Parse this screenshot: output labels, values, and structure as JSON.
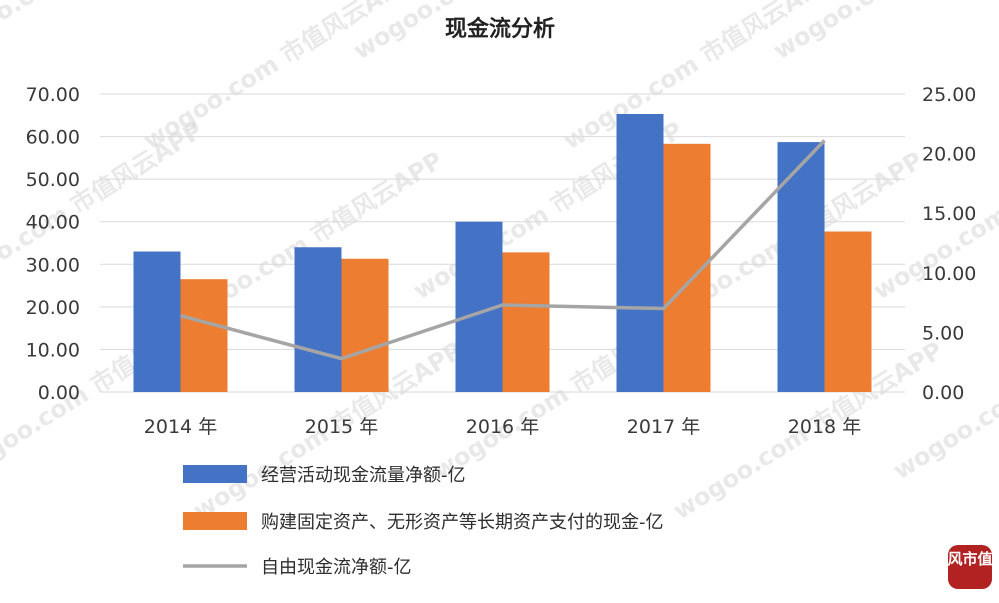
{
  "watermark": {
    "text": "wogoo.com 市值风云APP",
    "logo_text": "风市值"
  },
  "chart_data": {
    "type": "bar",
    "title": "现金流分析",
    "categories": [
      "2014 年",
      "2015 年",
      "2016 年",
      "2017 年",
      "2018 年"
    ],
    "series": [
      {
        "name": "经营活动现金流量净额-亿",
        "kind": "bar",
        "axis": "left",
        "color": "#4472c4",
        "values": [
          33.0,
          34.0,
          40.0,
          65.3,
          58.7
        ]
      },
      {
        "name": "购建固定资产、无形资产等长期资产支付的现金-亿",
        "kind": "bar",
        "axis": "left",
        "color": "#ed7d31",
        "values": [
          26.5,
          31.3,
          32.8,
          58.3,
          37.7
        ]
      },
      {
        "name": "自由现金流净额-亿",
        "kind": "line",
        "axis": "right",
        "color": "#a5a5a5",
        "values": [
          6.4,
          2.8,
          7.3,
          7.0,
          21.1
        ]
      }
    ],
    "y_left": {
      "min": 0,
      "max": 70,
      "step": 10,
      "ticks": [
        "0.00",
        "10.00",
        "20.00",
        "30.00",
        "40.00",
        "50.00",
        "60.00",
        "70.00"
      ]
    },
    "y_right": {
      "min": 0,
      "max": 25,
      "step": 5,
      "ticks": [
        "0.00",
        "5.00",
        "10.00",
        "15.00",
        "20.00",
        "25.00"
      ]
    },
    "grid": true,
    "legend_position": "bottom"
  }
}
